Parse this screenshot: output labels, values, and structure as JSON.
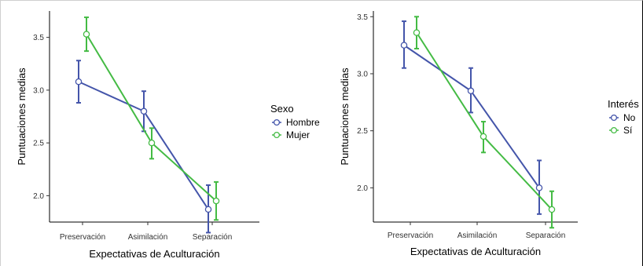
{
  "chart_data": [
    {
      "type": "line",
      "categories": [
        "Preservación",
        "Asimilación",
        "Separación"
      ],
      "xlabel": "Expectativas de Aculturación",
      "ylabel": "Puntuaciones medias",
      "ylim": [
        1.75,
        3.75
      ],
      "yticks": [
        2.0,
        2.5,
        3.0,
        3.5
      ],
      "grid": false,
      "legend_title": "Sexo",
      "legend_position": "right",
      "series": [
        {
          "name": "Hombre",
          "color": "#4455aa",
          "values": [
            3.08,
            2.8,
            1.87
          ],
          "err_low": [
            2.88,
            2.61,
            1.65
          ],
          "err_high": [
            3.28,
            2.99,
            2.1
          ]
        },
        {
          "name": "Mujer",
          "color": "#44bb44",
          "values": [
            3.53,
            2.5,
            1.95
          ],
          "err_low": [
            3.37,
            2.35,
            1.77
          ],
          "err_high": [
            3.69,
            2.64,
            2.13
          ]
        }
      ]
    },
    {
      "type": "line",
      "categories": [
        "Preservación",
        "Asimilación",
        "Separación"
      ],
      "xlabel": "Expectativas de Aculturación",
      "ylabel": "Puntuaciones medias",
      "ylim": [
        1.7,
        3.55
      ],
      "yticks": [
        2.0,
        2.5,
        3.0,
        3.5
      ],
      "grid": false,
      "legend_title": "Interés",
      "legend_position": "right",
      "series": [
        {
          "name": "No",
          "color": "#4455aa",
          "values": [
            3.25,
            2.85,
            2.0
          ],
          "err_low": [
            3.05,
            2.66,
            1.77
          ],
          "err_high": [
            3.46,
            3.05,
            2.24
          ]
        },
        {
          "name": "Sí",
          "color": "#44bb44",
          "values": [
            3.36,
            2.45,
            1.81
          ],
          "err_low": [
            3.22,
            2.31,
            1.65
          ],
          "err_high": [
            3.5,
            2.58,
            1.97
          ]
        }
      ]
    }
  ]
}
